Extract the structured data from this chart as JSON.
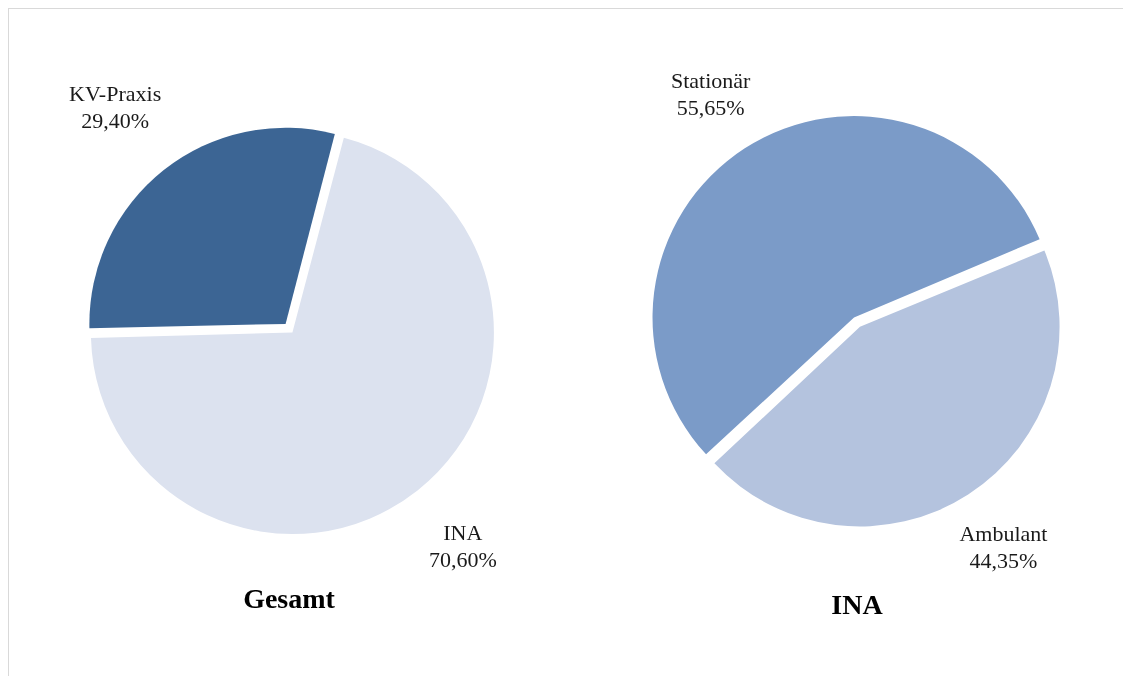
{
  "chart_data": [
    {
      "type": "pie",
      "title": "Gesamt",
      "categories": [
        "KV-Praxis",
        "INA"
      ],
      "values": [
        29.4,
        70.6
      ],
      "colors": [
        "#3c6594",
        "#dce2ef"
      ],
      "value_labels": [
        "29,40%",
        "70,60%"
      ]
    },
    {
      "type": "pie",
      "title": "INA",
      "categories": [
        "Stationär",
        "Ambulant"
      ],
      "values": [
        55.65,
        44.35
      ],
      "colors": [
        "#7b9bc8",
        "#b4c3de"
      ],
      "value_labels": [
        "55,65%",
        "44,35%"
      ]
    }
  ]
}
